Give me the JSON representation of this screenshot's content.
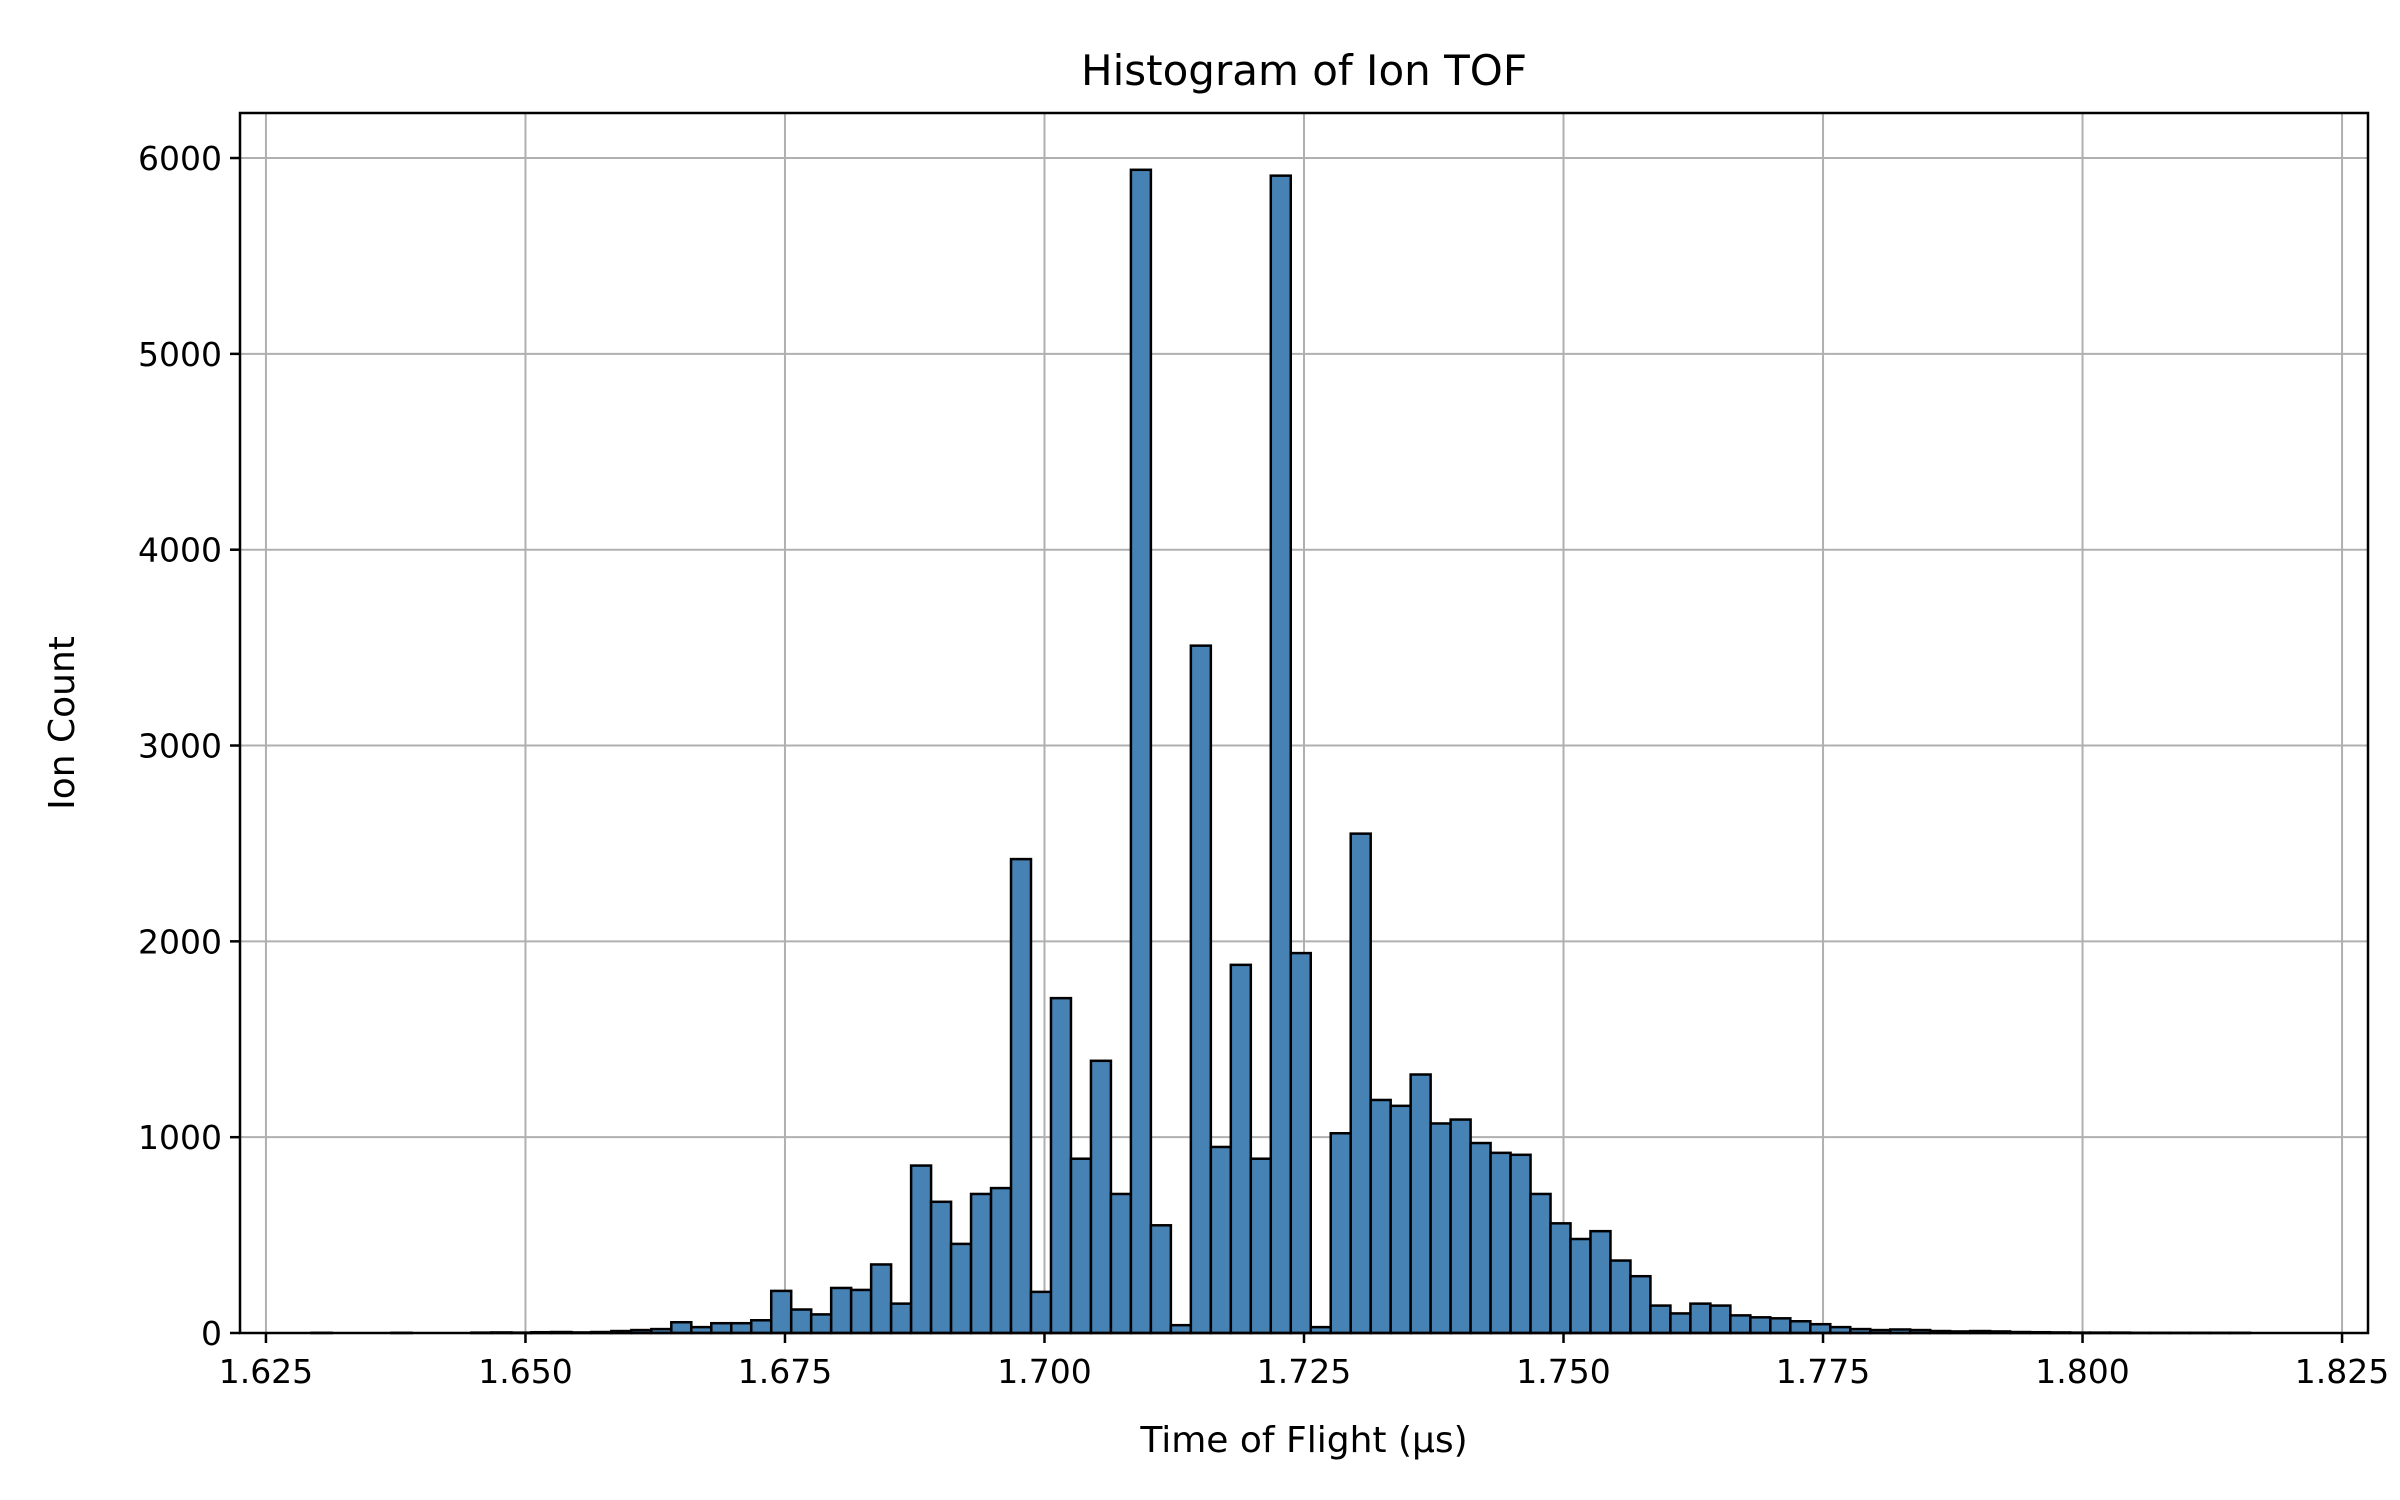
{
  "chart_data": {
    "type": "bar",
    "title": "Histogram of Ion TOF",
    "xlabel": "Time of Flight (µs)",
    "ylabel": "Ion Count",
    "xlim": [
      1.6225,
      1.8275
    ],
    "ylim": [
      0,
      6230
    ],
    "grid": true,
    "bar_color": "#4682b4",
    "edge_color": "#000000",
    "x_ticks": [
      "1.625",
      "1.650",
      "1.675",
      "1.700",
      "1.725",
      "1.750",
      "1.775",
      "1.800",
      "1.825"
    ],
    "y_ticks": [
      "0",
      "1000",
      "2000",
      "3000",
      "4000",
      "5000",
      "6000"
    ],
    "bin_start": 1.6294,
    "bin_width": 0.001925,
    "counts": [
      1,
      0,
      0,
      0,
      1,
      0,
      0,
      0,
      2,
      3,
      2,
      4,
      5,
      3,
      5,
      10,
      15,
      20,
      55,
      30,
      50,
      50,
      65,
      215,
      120,
      95,
      230,
      220,
      350,
      150,
      855,
      670,
      455,
      710,
      740,
      2420,
      210,
      1710,
      890,
      1390,
      710,
      5940,
      550,
      40,
      3510,
      950,
      1880,
      890,
      5910,
      1940,
      30,
      1020,
      2550,
      1190,
      1160,
      1320,
      1070,
      1090,
      970,
      920,
      910,
      710,
      560,
      480,
      520,
      370,
      290,
      140,
      100,
      150,
      140,
      90,
      80,
      75,
      60,
      45,
      30,
      20,
      15,
      18,
      15,
      10,
      8,
      10,
      8,
      5,
      4,
      3,
      2,
      2,
      2,
      1,
      1,
      1,
      1,
      1,
      1,
      0,
      0,
      0,
      0,
      0,
      0
    ]
  }
}
